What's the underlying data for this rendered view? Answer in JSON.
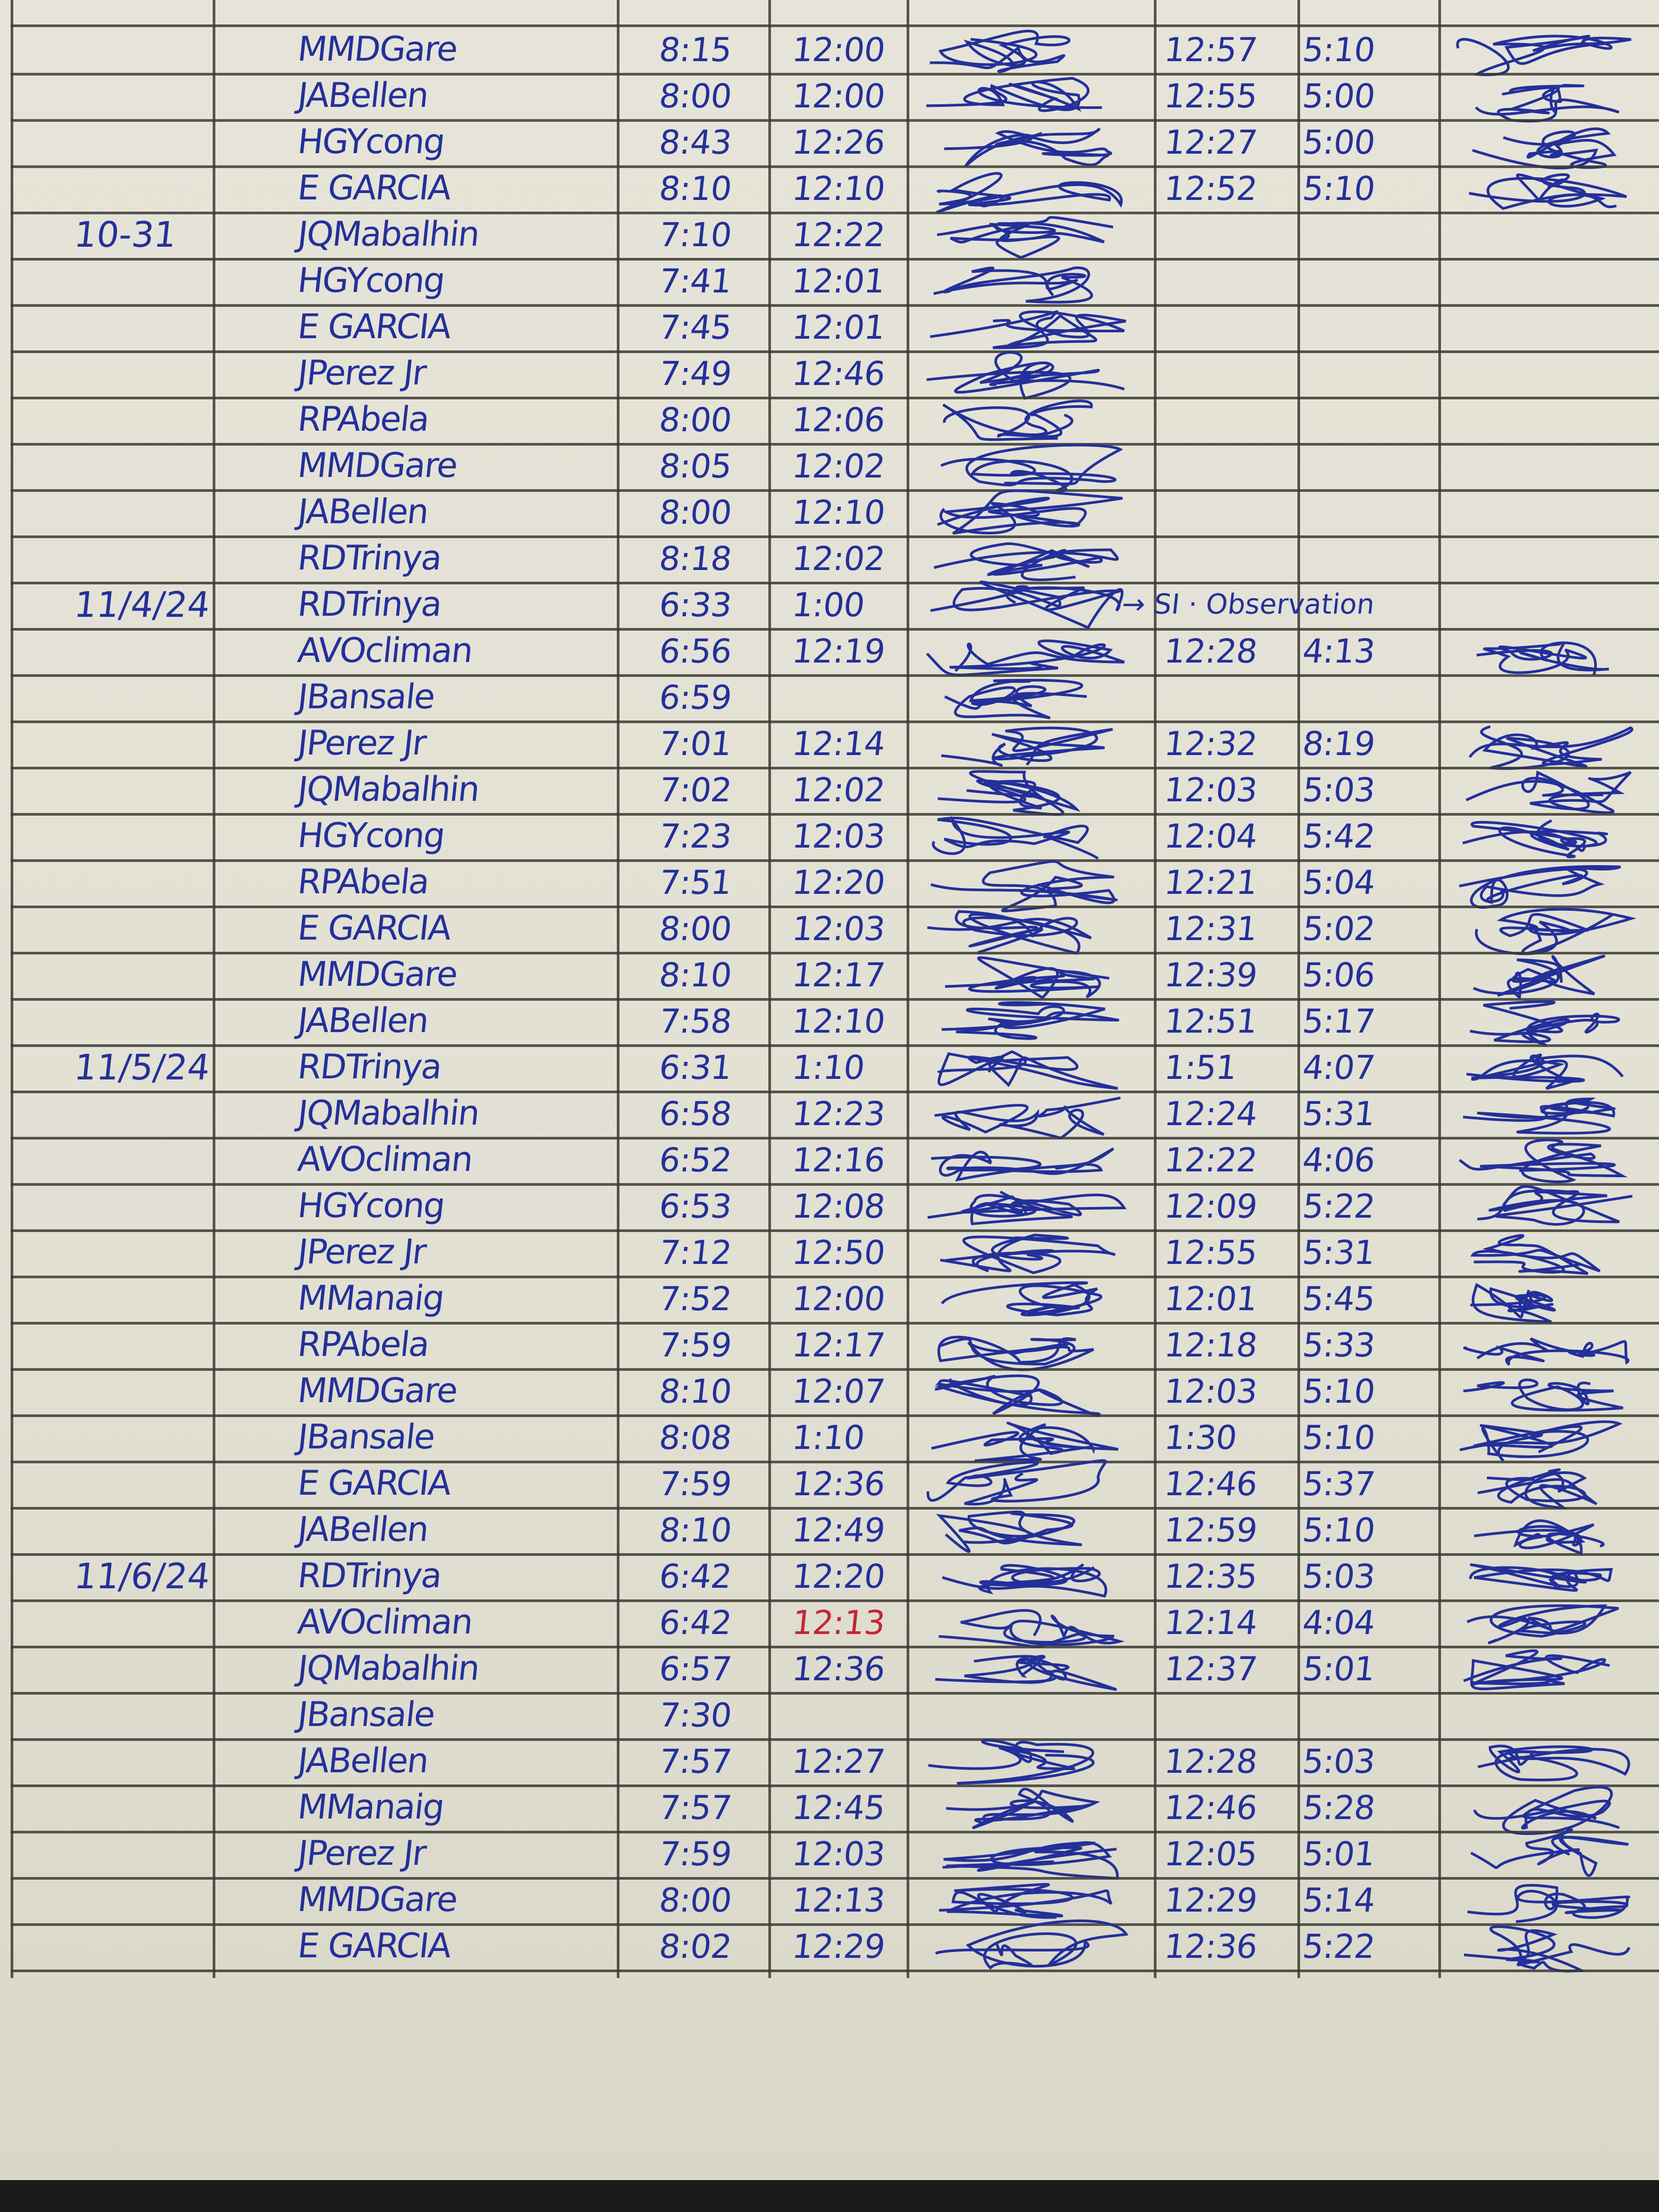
{
  "colors": {
    "ink": "#23309a",
    "red_ink": "#c2263a",
    "paper": "#e4e2d6",
    "rules": "#3c3b33"
  },
  "log": {
    "rows": [
      {
        "date": "",
        "name": "MMDGare",
        "am_in": "8:15",
        "am_out": "12:00",
        "pm_in": "12:57",
        "pm_out": "5:10",
        "signed": true
      },
      {
        "date": "",
        "name": "JABellen",
        "am_in": "8:00",
        "am_out": "12:00",
        "pm_in": "12:55",
        "pm_out": "5:00",
        "signed": true
      },
      {
        "date": "",
        "name": "HGYcong",
        "am_in": "8:43",
        "am_out": "12:26",
        "pm_in": "12:27",
        "pm_out": "5:00",
        "signed": true
      },
      {
        "date": "",
        "name": "E   GARCIA",
        "am_in": "8:10",
        "am_out": "12:10",
        "pm_in": "12:52",
        "pm_out": "5:10",
        "signed": true
      },
      {
        "date": "10-31",
        "name": "JQMabalhin",
        "am_in": "7:10",
        "am_out": "12:22",
        "pm_in": "",
        "pm_out": "",
        "signed": true
      },
      {
        "date": "",
        "name": "HGYcong",
        "am_in": "7:41",
        "am_out": "12:01",
        "pm_in": "",
        "pm_out": "",
        "signed": true
      },
      {
        "date": "",
        "name": "E   GARCIA",
        "am_in": "7:45",
        "am_out": "12:01",
        "pm_in": "",
        "pm_out": "",
        "signed": true
      },
      {
        "date": "",
        "name": "JPerez Jr",
        "am_in": "7:49",
        "am_out": "12:46",
        "pm_in": "",
        "pm_out": "",
        "signed": true
      },
      {
        "date": "",
        "name": "RPAbela",
        "am_in": "8:00",
        "am_out": "12:06",
        "pm_in": "",
        "pm_out": "",
        "signed": true
      },
      {
        "date": "",
        "name": "MMDGare",
        "am_in": "8:05",
        "am_out": "12:02",
        "pm_in": "",
        "pm_out": "",
        "signed": true
      },
      {
        "date": "",
        "name": "JABellen",
        "am_in": "8:00",
        "am_out": "12:10",
        "pm_in": "",
        "pm_out": "",
        "signed": true
      },
      {
        "date": "",
        "name": "RDTrinya",
        "am_in": "8:18",
        "am_out": "12:02",
        "pm_in": "",
        "pm_out": "",
        "signed": true
      },
      {
        "date": "11/4/24",
        "name": "RDTrinya",
        "am_in": "6:33",
        "am_out": "1:00",
        "pm_in": "",
        "pm_out": "",
        "note": "→ SI · Observation",
        "signed": true
      },
      {
        "date": "",
        "name": "AVOcliman",
        "am_in": "6:56",
        "am_out": "12:19",
        "pm_in": "12:28",
        "pm_out": "4:13",
        "signed": true
      },
      {
        "date": "",
        "name": "JBansale",
        "am_in": "6:59",
        "am_out": "",
        "pm_in": "",
        "pm_out": "",
        "signed": true
      },
      {
        "date": "",
        "name": "JPerez Jr",
        "am_in": "7:01",
        "am_out": "12:14",
        "pm_in": "12:32",
        "pm_out": "8:19",
        "signed": true
      },
      {
        "date": "",
        "name": "JQMabalhin",
        "am_in": "7:02",
        "am_out": "12:02",
        "pm_in": "12:03",
        "pm_out": "5:03",
        "signed": true
      },
      {
        "date": "",
        "name": "HGYcong",
        "am_in": "7:23",
        "am_out": "12:03",
        "pm_in": "12:04",
        "pm_out": "5:42",
        "signed": true
      },
      {
        "date": "",
        "name": "RPAbela",
        "am_in": "7:51",
        "am_out": "12:20",
        "pm_in": "12:21",
        "pm_out": "5:04",
        "signed": true
      },
      {
        "date": "",
        "name": "E   GARCIA",
        "am_in": "8:00",
        "am_out": "12:03",
        "pm_in": "12:31",
        "pm_out": "5:02",
        "signed": true
      },
      {
        "date": "",
        "name": "MMDGare",
        "am_in": "8:10",
        "am_out": "12:17",
        "pm_in": "12:39",
        "pm_out": "5:06",
        "signed": true
      },
      {
        "date": "",
        "name": "JABellen",
        "am_in": "7:58",
        "am_out": "12:10",
        "pm_in": "12:51",
        "pm_out": "5:17",
        "signed": true
      },
      {
        "date": "11/5/24",
        "name": "RDTrinya",
        "am_in": "6:31",
        "am_out": "1:10",
        "pm_in": "1:51",
        "pm_out": "4:07",
        "signed": true
      },
      {
        "date": "",
        "name": "JQMabalhin",
        "am_in": "6:58",
        "am_out": "12:23",
        "pm_in": "12:24",
        "pm_out": "5:31",
        "signed": true
      },
      {
        "date": "",
        "name": "AVOcliman",
        "am_in": "6:52",
        "am_out": "12:16",
        "pm_in": "12:22",
        "pm_out": "4:06",
        "signed": true
      },
      {
        "date": "",
        "name": "HGYcong",
        "am_in": "6:53",
        "am_out": "12:08",
        "pm_in": "12:09",
        "pm_out": "5:22",
        "signed": true
      },
      {
        "date": "",
        "name": "JPerez Jr",
        "am_in": "7:12",
        "am_out": "12:50",
        "pm_in": "12:55",
        "pm_out": "5:31",
        "signed": true
      },
      {
        "date": "",
        "name": "MManaig",
        "am_in": "7:52",
        "am_out": "12:00",
        "pm_in": "12:01",
        "pm_out": "5:45",
        "signed": true
      },
      {
        "date": "",
        "name": "RPAbela",
        "am_in": "7:59",
        "am_out": "12:17",
        "pm_in": "12:18",
        "pm_out": "5:33",
        "signed": true
      },
      {
        "date": "",
        "name": "MMDGare",
        "am_in": "8:10",
        "am_out": "12:07",
        "pm_in": "12:03",
        "pm_out": "5:10",
        "signed": true
      },
      {
        "date": "",
        "name": "JBansale",
        "am_in": "8:08",
        "am_out": "1:10",
        "pm_in": "1:30",
        "pm_out": "5:10",
        "signed": true
      },
      {
        "date": "",
        "name": "E   GARCIA",
        "am_in": "7:59",
        "am_out": "12:36",
        "pm_in": "12:46",
        "pm_out": "5:37",
        "signed": true
      },
      {
        "date": "",
        "name": "JABellen",
        "am_in": "8:10",
        "am_out": "12:49",
        "pm_in": "12:59",
        "pm_out": "5:10",
        "signed": true
      },
      {
        "date": "11/6/24",
        "name": "RDTrinya",
        "am_in": "6:42",
        "am_out": "12:20",
        "pm_in": "12:35",
        "pm_out": "5:03",
        "signed": true
      },
      {
        "date": "",
        "name": "AVOcliman",
        "am_in": "6:42",
        "am_out": "12:13",
        "am_out_red": true,
        "pm_in": "12:14",
        "pm_out": "4:04",
        "signed": true
      },
      {
        "date": "",
        "name": "JQMabalhin",
        "am_in": "6:57",
        "am_out": "12:36",
        "pm_in": "12:37",
        "pm_out": "5:01",
        "signed": true
      },
      {
        "date": "",
        "name": "JBansale",
        "am_in": "7:30",
        "am_out": "",
        "pm_in": "",
        "pm_out": "",
        "signed": false
      },
      {
        "date": "",
        "name": "JABellen",
        "am_in": "7:57",
        "am_out": "12:27",
        "pm_in": "12:28",
        "pm_out": "5:03",
        "signed": true
      },
      {
        "date": "",
        "name": "MManaig",
        "am_in": "7:57",
        "am_out": "12:45",
        "pm_in": "12:46",
        "pm_out": "5:28",
        "signed": true
      },
      {
        "date": "",
        "name": "JPerez Jr",
        "am_in": "7:59",
        "am_out": "12:03",
        "pm_in": "12:05",
        "pm_out": "5:01",
        "signed": true
      },
      {
        "date": "",
        "name": "MMDGare",
        "am_in": "8:00",
        "am_out": "12:13",
        "pm_in": "12:29",
        "pm_out": "5:14",
        "signed": true
      },
      {
        "date": "",
        "name": "E   GARCIA",
        "am_in": "8:02",
        "am_out": "12:29",
        "pm_in": "12:36",
        "pm_out": "5:22",
        "signed": true
      }
    ]
  }
}
